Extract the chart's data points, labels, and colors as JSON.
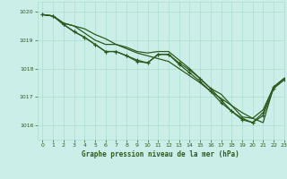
{
  "bg_color": "#cceee8",
  "grid_color": "#aaddcc",
  "line_color": "#2d5a1e",
  "title": "Graphe pression niveau de la mer (hPa)",
  "xlim": [
    -0.5,
    23
  ],
  "ylim": [
    1015.5,
    1020.35
  ],
  "yticks": [
    1016,
    1017,
    1018,
    1019,
    1020
  ],
  "xticks": [
    0,
    1,
    2,
    3,
    4,
    5,
    6,
    7,
    8,
    9,
    10,
    11,
    12,
    13,
    14,
    15,
    16,
    17,
    18,
    19,
    20,
    21,
    22,
    23
  ],
  "series": [
    {
      "y": [
        1019.9,
        1019.85,
        1019.6,
        1019.5,
        1019.4,
        1019.2,
        1019.05,
        1018.85,
        1018.7,
        1018.55,
        1018.45,
        1018.35,
        1018.25,
        1018.0,
        1017.75,
        1017.5,
        1017.2,
        1016.95,
        1016.7,
        1016.45,
        1016.25,
        1016.1,
        1017.35,
        1017.65
      ],
      "marker": null,
      "lw": 0.9
    },
    {
      "y": [
        1019.9,
        1019.85,
        1019.55,
        1019.3,
        1019.1,
        1018.85,
        1018.6,
        1018.6,
        1018.45,
        1018.25,
        1018.2,
        1018.5,
        1018.5,
        1018.15,
        1017.85,
        1017.55,
        1017.2,
        1016.8,
        1016.5,
        1016.25,
        1016.1,
        1016.35,
        1017.3,
        1017.6
      ],
      "marker": "+",
      "lw": 0.9
    },
    {
      "y": [
        1019.9,
        1019.85,
        1019.55,
        1019.3,
        1019.1,
        1018.85,
        1018.6,
        1018.6,
        1018.45,
        1018.3,
        1018.2,
        1018.5,
        1018.5,
        1018.2,
        1017.95,
        1017.65,
        1017.3,
        1016.9,
        1016.5,
        1016.2,
        1016.1,
        1016.45,
        1017.35,
        1017.65
      ],
      "marker": "+",
      "lw": 0.9
    },
    {
      "y": [
        1019.9,
        1019.85,
        1019.6,
        1019.5,
        1019.25,
        1019.0,
        1018.85,
        1018.85,
        1018.75,
        1018.6,
        1018.55,
        1018.6,
        1018.6,
        1018.3,
        1018.0,
        1017.65,
        1017.3,
        1017.1,
        1016.7,
        1016.3,
        1016.25,
        1016.55,
        1017.35,
        1017.65
      ],
      "marker": null,
      "lw": 0.9
    }
  ],
  "figsize": [
    3.2,
    2.0
  ],
  "dpi": 100
}
